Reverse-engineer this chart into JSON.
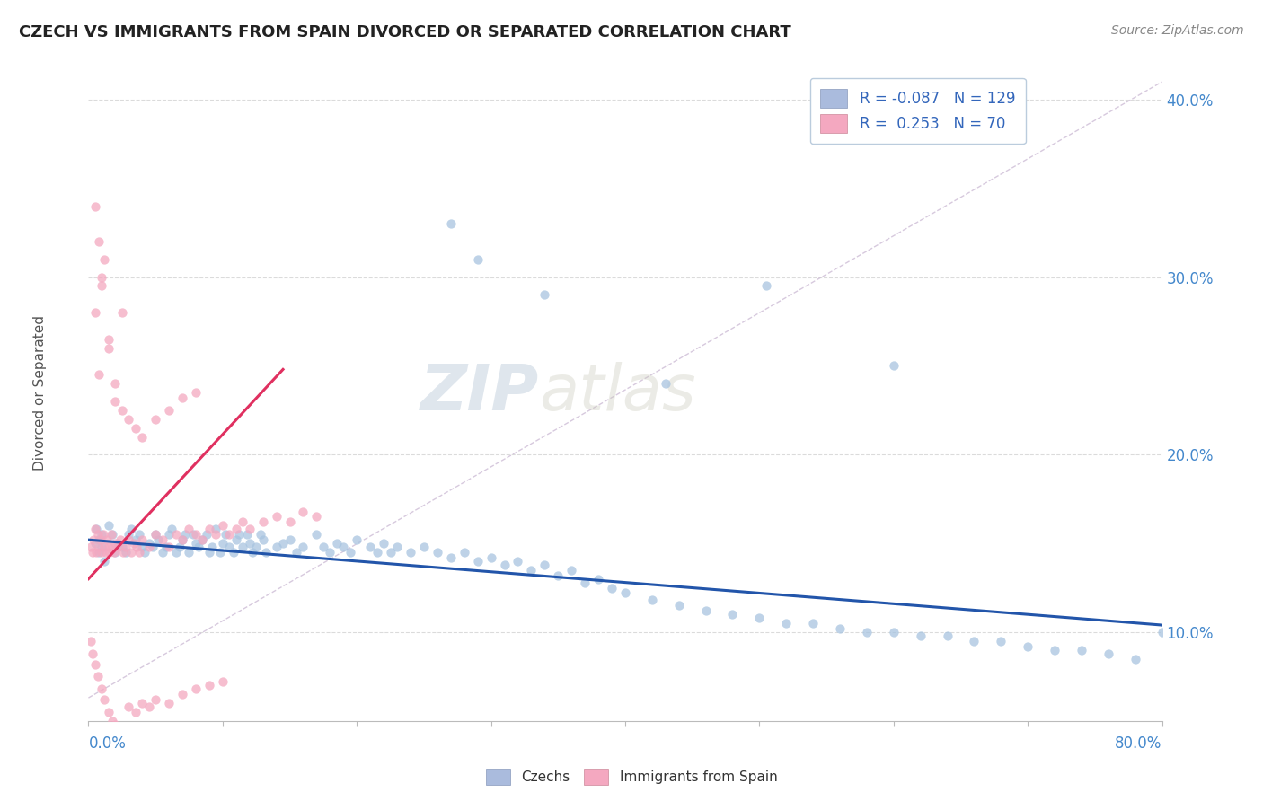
{
  "title": "CZECH VS IMMIGRANTS FROM SPAIN DIVORCED OR SEPARATED CORRELATION CHART",
  "source": "Source: ZipAtlas.com",
  "ylabel": "Divorced or Separated",
  "xmin": 0.0,
  "xmax": 0.8,
  "ymin": 0.05,
  "ymax": 0.42,
  "yticks": [
    0.1,
    0.2,
    0.3,
    0.4
  ],
  "ytick_labels": [
    "10.0%",
    "20.0%",
    "30.0%",
    "40.0%"
  ],
  "blue_color": "#A8C4E0",
  "pink_color": "#F4A8C0",
  "blue_line_color": "#2255AA",
  "pink_line_color": "#E03060",
  "diag_line_color": "#D0C0D8",
  "watermark_zip": "ZIP",
  "watermark_atlas": "atlas",
  "legend_labels": [
    "R = -0.087   N = 129",
    "R =  0.253   N = 70"
  ],
  "bottom_labels": [
    "Czechs",
    "Immigrants from Spain"
  ],
  "czech_scatter_x": [
    0.005,
    0.008,
    0.01,
    0.012,
    0.015,
    0.01,
    0.008,
    0.006,
    0.02,
    0.018,
    0.022,
    0.025,
    0.03,
    0.028,
    0.032,
    0.035,
    0.04,
    0.038,
    0.042,
    0.045,
    0.05,
    0.048,
    0.052,
    0.055,
    0.06,
    0.058,
    0.062,
    0.065,
    0.07,
    0.068,
    0.072,
    0.075,
    0.08,
    0.078,
    0.082,
    0.085,
    0.09,
    0.088,
    0.092,
    0.095,
    0.1,
    0.098,
    0.102,
    0.105,
    0.11,
    0.108,
    0.112,
    0.115,
    0.12,
    0.118,
    0.122,
    0.125,
    0.13,
    0.128,
    0.132,
    0.14,
    0.145,
    0.15,
    0.155,
    0.16,
    0.17,
    0.175,
    0.18,
    0.185,
    0.19,
    0.195,
    0.2,
    0.21,
    0.215,
    0.22,
    0.225,
    0.23,
    0.24,
    0.25,
    0.26,
    0.27,
    0.28,
    0.29,
    0.3,
    0.31,
    0.32,
    0.33,
    0.34,
    0.35,
    0.36,
    0.37,
    0.38,
    0.39,
    0.4,
    0.42,
    0.44,
    0.46,
    0.48,
    0.5,
    0.52,
    0.54,
    0.56,
    0.58,
    0.6,
    0.62,
    0.64,
    0.66,
    0.68,
    0.7,
    0.72,
    0.74,
    0.76,
    0.78,
    0.8
  ],
  "czech_scatter_y": [
    0.15,
    0.145,
    0.155,
    0.14,
    0.16,
    0.148,
    0.152,
    0.158,
    0.145,
    0.155,
    0.15,
    0.148,
    0.155,
    0.145,
    0.158,
    0.152,
    0.148,
    0.155,
    0.145,
    0.15,
    0.155,
    0.148,
    0.152,
    0.145,
    0.155,
    0.148,
    0.158,
    0.145,
    0.152,
    0.148,
    0.155,
    0.145,
    0.15,
    0.155,
    0.148,
    0.152,
    0.145,
    0.155,
    0.148,
    0.158,
    0.15,
    0.145,
    0.155,
    0.148,
    0.152,
    0.145,
    0.155,
    0.148,
    0.15,
    0.155,
    0.145,
    0.148,
    0.152,
    0.155,
    0.145,
    0.148,
    0.15,
    0.152,
    0.145,
    0.148,
    0.155,
    0.148,
    0.145,
    0.15,
    0.148,
    0.145,
    0.152,
    0.148,
    0.145,
    0.15,
    0.145,
    0.148,
    0.145,
    0.148,
    0.145,
    0.142,
    0.145,
    0.14,
    0.142,
    0.138,
    0.14,
    0.135,
    0.138,
    0.132,
    0.135,
    0.128,
    0.13,
    0.125,
    0.122,
    0.118,
    0.115,
    0.112,
    0.11,
    0.108,
    0.105,
    0.105,
    0.102,
    0.1,
    0.1,
    0.098,
    0.098,
    0.095,
    0.095,
    0.092,
    0.09,
    0.09,
    0.088,
    0.085,
    0.1
  ],
  "czech_outlier_x": [
    0.27,
    0.34,
    0.29,
    0.43,
    0.505,
    0.6
  ],
  "czech_outlier_y": [
    0.33,
    0.29,
    0.31,
    0.24,
    0.295,
    0.25
  ],
  "spain_scatter_x": [
    0.002,
    0.003,
    0.004,
    0.005,
    0.006,
    0.007,
    0.008,
    0.009,
    0.01,
    0.011,
    0.012,
    0.013,
    0.014,
    0.015,
    0.016,
    0.017,
    0.018,
    0.019,
    0.02,
    0.022,
    0.024,
    0.026,
    0.028,
    0.03,
    0.032,
    0.034,
    0.036,
    0.038,
    0.04,
    0.045,
    0.05,
    0.055,
    0.06,
    0.065,
    0.07,
    0.075,
    0.08,
    0.085,
    0.09,
    0.095,
    0.1,
    0.105,
    0.11,
    0.115,
    0.12,
    0.13,
    0.14,
    0.15,
    0.16,
    0.17,
    0.002,
    0.003,
    0.005,
    0.007,
    0.01,
    0.012,
    0.015,
    0.018,
    0.02,
    0.025,
    0.03,
    0.035,
    0.04,
    0.045,
    0.05,
    0.06,
    0.07,
    0.08,
    0.09,
    0.1
  ],
  "spain_scatter_y": [
    0.148,
    0.145,
    0.152,
    0.158,
    0.145,
    0.155,
    0.148,
    0.152,
    0.145,
    0.155,
    0.148,
    0.145,
    0.152,
    0.148,
    0.145,
    0.155,
    0.148,
    0.145,
    0.15,
    0.148,
    0.152,
    0.145,
    0.148,
    0.152,
    0.145,
    0.15,
    0.148,
    0.145,
    0.152,
    0.148,
    0.155,
    0.152,
    0.148,
    0.155,
    0.152,
    0.158,
    0.155,
    0.152,
    0.158,
    0.155,
    0.16,
    0.155,
    0.158,
    0.162,
    0.158,
    0.162,
    0.165,
    0.162,
    0.168,
    0.165,
    0.095,
    0.088,
    0.082,
    0.075,
    0.068,
    0.062,
    0.055,
    0.05,
    0.048,
    0.045,
    0.058,
    0.055,
    0.06,
    0.058,
    0.062,
    0.06,
    0.065,
    0.068,
    0.07,
    0.072
  ],
  "spain_outlier_x": [
    0.008,
    0.012,
    0.01,
    0.005,
    0.015,
    0.008,
    0.02,
    0.025,
    0.03,
    0.035,
    0.04,
    0.05,
    0.06,
    0.07,
    0.08,
    0.005,
    0.01,
    0.015,
    0.02,
    0.025
  ],
  "spain_outlier_y": [
    0.32,
    0.31,
    0.295,
    0.28,
    0.265,
    0.245,
    0.23,
    0.225,
    0.22,
    0.215,
    0.21,
    0.22,
    0.225,
    0.232,
    0.235,
    0.34,
    0.3,
    0.26,
    0.24,
    0.28
  ],
  "blue_line_x": [
    0.0,
    0.8
  ],
  "blue_line_y": [
    0.152,
    0.104
  ],
  "pink_line_x": [
    0.0,
    0.145
  ],
  "pink_line_y": [
    0.13,
    0.248
  ],
  "diag_line_x": [
    0.0,
    0.8
  ],
  "diag_line_y": [
    0.063,
    0.41
  ]
}
